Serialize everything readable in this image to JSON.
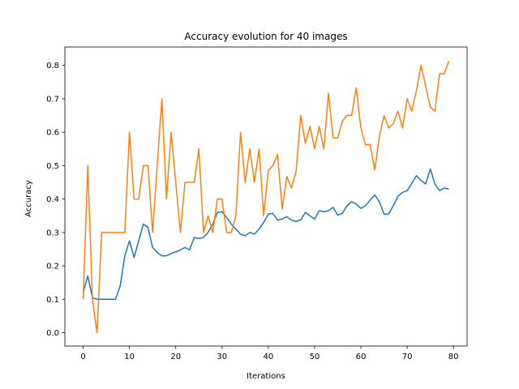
{
  "chart_data": {
    "type": "line",
    "title": "Accuracy evolution for 40 images",
    "xlabel": "Iterations",
    "ylabel": "Accuracy",
    "xlim": [
      -3.95,
      82.95
    ],
    "ylim": [
      -0.04,
      0.855
    ],
    "xticks": [
      0,
      10,
      20,
      30,
      40,
      50,
      60,
      70,
      80
    ],
    "xtick_labels": [
      "0",
      "10",
      "20",
      "30",
      "40",
      "50",
      "60",
      "70",
      "80"
    ],
    "yticks": [
      0.0,
      0.1,
      0.2,
      0.3,
      0.4,
      0.5,
      0.6,
      0.7,
      0.8
    ],
    "ytick_labels": [
      "0.0",
      "0.1",
      "0.2",
      "0.3",
      "0.4",
      "0.5",
      "0.6",
      "0.7",
      "0.8"
    ],
    "grid": false,
    "legend": false,
    "series": [
      {
        "color": "#1f77b4",
        "x": [
          0,
          1,
          2,
          3,
          4,
          5,
          6,
          7,
          8,
          9,
          10,
          11,
          12,
          13,
          14,
          15,
          16,
          17,
          18,
          19,
          20,
          21,
          22,
          23,
          24,
          25,
          26,
          27,
          28,
          29,
          30,
          31,
          32,
          33,
          34,
          35,
          36,
          37,
          38,
          39,
          40,
          41,
          42,
          43,
          44,
          45,
          46,
          47,
          48,
          49,
          50,
          51,
          52,
          53,
          54,
          55,
          56,
          57,
          58,
          59,
          60,
          61,
          62,
          63,
          64,
          65,
          66,
          67,
          68,
          69,
          70,
          71,
          72,
          73,
          74,
          75,
          76,
          77,
          78,
          79
        ],
        "y": [
          0.12,
          0.17,
          0.105,
          0.1,
          0.1,
          0.1,
          0.1,
          0.1,
          0.14,
          0.23,
          0.275,
          0.225,
          0.275,
          0.325,
          0.315,
          0.255,
          0.24,
          0.23,
          0.23,
          0.237,
          0.242,
          0.248,
          0.255,
          0.248,
          0.285,
          0.282,
          0.285,
          0.3,
          0.325,
          0.36,
          0.362,
          0.345,
          0.325,
          0.31,
          0.295,
          0.29,
          0.3,
          0.295,
          0.31,
          0.33,
          0.355,
          0.357,
          0.337,
          0.34,
          0.347,
          0.337,
          0.333,
          0.337,
          0.36,
          0.35,
          0.34,
          0.365,
          0.362,
          0.365,
          0.375,
          0.352,
          0.357,
          0.38,
          0.392,
          0.385,
          0.372,
          0.38,
          0.397,
          0.412,
          0.392,
          0.355,
          0.355,
          0.38,
          0.408,
          0.42,
          0.425,
          0.447,
          0.47,
          0.455,
          0.445,
          0.49,
          0.445,
          0.425,
          0.433,
          0.43
        ]
      },
      {
        "color": "#ff7f0e",
        "x": [
          0,
          1,
          2,
          3,
          4,
          5,
          6,
          7,
          8,
          9,
          10,
          11,
          12,
          13,
          14,
          15,
          16,
          17,
          18,
          19,
          20,
          21,
          22,
          23,
          24,
          25,
          26,
          27,
          28,
          29,
          30,
          31,
          32,
          33,
          34,
          35,
          36,
          37,
          38,
          39,
          40,
          41,
          42,
          43,
          44,
          45,
          46,
          47,
          48,
          49,
          50,
          51,
          52,
          53,
          54,
          55,
          56,
          57,
          58,
          59,
          60,
          61,
          62,
          63,
          64,
          65,
          66,
          67,
          68,
          69,
          70,
          71,
          72,
          73,
          74,
          75,
          76,
          77,
          78,
          79
        ],
        "y": [
          0.1,
          0.5,
          0.1,
          0.0,
          0.3,
          0.3,
          0.3,
          0.3,
          0.3,
          0.3,
          0.6,
          0.4,
          0.4,
          0.5,
          0.5,
          0.3,
          0.5,
          0.7,
          0.4,
          0.6,
          0.45,
          0.3,
          0.45,
          0.45,
          0.45,
          0.55,
          0.3,
          0.35,
          0.3,
          0.4,
          0.4,
          0.3,
          0.3,
          0.35,
          0.6,
          0.45,
          0.55,
          0.45,
          0.55,
          0.35,
          0.485,
          0.5,
          0.533,
          0.37,
          0.467,
          0.433,
          0.483,
          0.65,
          0.567,
          0.617,
          0.55,
          0.617,
          0.55,
          0.717,
          0.583,
          0.583,
          0.633,
          0.65,
          0.65,
          0.733,
          0.613,
          0.563,
          0.563,
          0.487,
          0.587,
          0.65,
          0.613,
          0.625,
          0.663,
          0.613,
          0.7,
          0.663,
          0.725,
          0.8,
          0.738,
          0.675,
          0.663,
          0.775,
          0.775,
          0.813
        ]
      }
    ]
  }
}
